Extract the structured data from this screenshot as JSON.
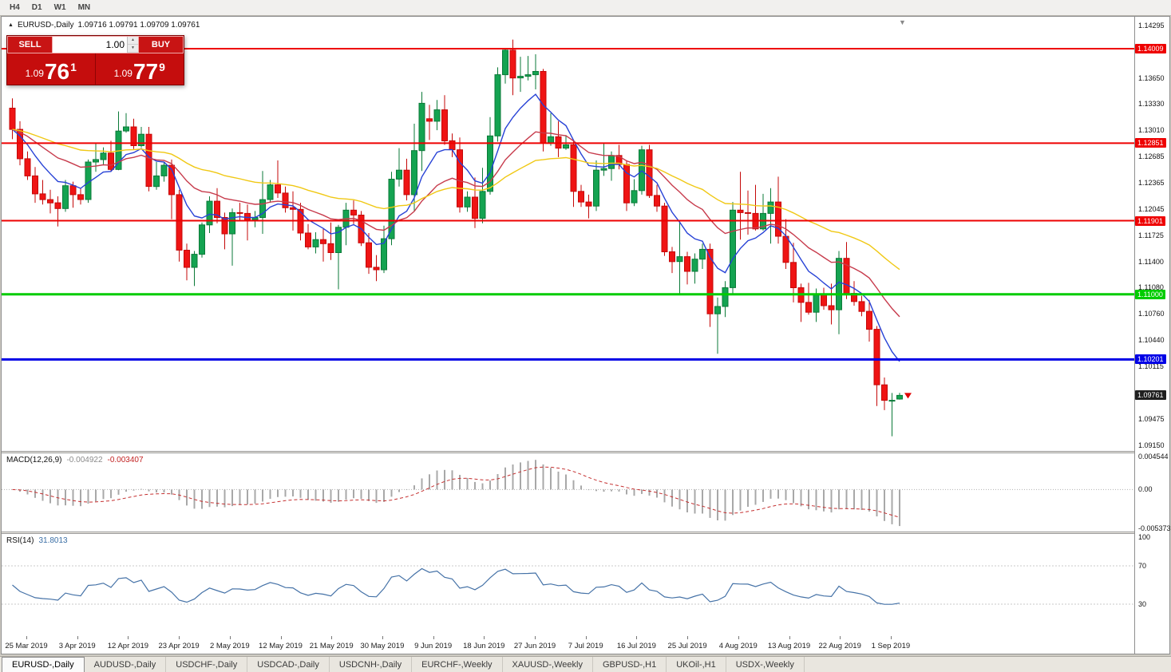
{
  "toolbar": {
    "timeframes": [
      "H4",
      "D1",
      "W1",
      "MN"
    ]
  },
  "icons": {
    "symbol_marker": "▲",
    "spinner_up": "▲",
    "spinner_down": "▼",
    "shift_marker": "▼",
    "price_arrow": "▼"
  },
  "window": {
    "symbol_line": {
      "symbol": "EURUSD-,Daily",
      "ohlc": "1.09716 1.09791 1.09709 1.09761"
    },
    "trade_panel": {
      "sell_label": "SELL",
      "buy_label": "BUY",
      "volume": "1.00",
      "sell_price": {
        "prefix": "1.09",
        "big": "76",
        "sup": "1"
      },
      "buy_price": {
        "prefix": "1.09",
        "big": "77",
        "sup": "9"
      }
    }
  },
  "price_scale": {
    "ticks": [
      "1.14295",
      "1.13650",
      "1.13330",
      "1.13010",
      "1.12685",
      "1.12365",
      "1.12045",
      "1.11725",
      "1.11400",
      "1.11080",
      "1.10760",
      "1.10440",
      "1.10115",
      "1.09475",
      "1.09150"
    ],
    "current": {
      "label": "1.09761",
      "price": 1.09761,
      "color": "#1f1f1f"
    }
  },
  "macd": {
    "label": "MACD(12,26,9)",
    "value_main": "-0.004922",
    "value_signal": "-0.003407",
    "scale_ticks": [
      {
        "label": "0.004544",
        "value": 0.004544
      },
      {
        "label": "0.00",
        "value": 0
      },
      {
        "label": "-0.005373",
        "value": -0.005373
      }
    ],
    "scale": {
      "max": 0.005,
      "min": -0.0058
    },
    "colors": {
      "histogram": "#a8a8a8",
      "signal": "#c53030"
    }
  },
  "rsi": {
    "label": "RSI(14)",
    "value": "31.8013",
    "scale_ticks": [
      100,
      70,
      30
    ],
    "upper_level": 70,
    "lower_level": 30,
    "color": "#4572a7"
  },
  "chart_data": {
    "type": "candlestick",
    "symbol": "EURUSD",
    "timeframe": "Daily",
    "title": "EURUSD-,Daily",
    "y_range": {
      "min": 1.0908,
      "max": 1.144
    },
    "x_labels": [
      "25 Mar 2019",
      "3 Apr 2019",
      "12 Apr 2019",
      "23 Apr 2019",
      "2 May 2019",
      "12 May 2019",
      "21 May 2019",
      "30 May 2019",
      "9 Jun 2019",
      "18 Jun 2019",
      "27 Jun 2019",
      "7 Jul 2019",
      "16 Jul 2019",
      "25 Jul 2019",
      "4 Aug 2019",
      "13 Aug 2019",
      "22 Aug 2019",
      "1 Sep 2019"
    ],
    "candles": [
      [
        1.1328,
        1.134,
        1.129,
        1.1302
      ],
      [
        1.1302,
        1.1312,
        1.1258,
        1.1266
      ],
      [
        1.1266,
        1.1275,
        1.124,
        1.1245
      ],
      [
        1.1245,
        1.1256,
        1.1212,
        1.1223
      ],
      [
        1.1223,
        1.124,
        1.121,
        1.1216
      ],
      [
        1.1216,
        1.1228,
        1.1199,
        1.1212
      ],
      [
        1.1212,
        1.122,
        1.1183,
        1.1205
      ],
      [
        1.1205,
        1.124,
        1.1201,
        1.1233
      ],
      [
        1.1233,
        1.1238,
        1.1206,
        1.1222
      ],
      [
        1.1222,
        1.123,
        1.121,
        1.1216
      ],
      [
        1.1216,
        1.1265,
        1.1212,
        1.1262
      ],
      [
        1.1262,
        1.1285,
        1.125,
        1.1265
      ],
      [
        1.1265,
        1.128,
        1.1258,
        1.1273
      ],
      [
        1.1273,
        1.1288,
        1.125,
        1.1253
      ],
      [
        1.1253,
        1.1324,
        1.1252,
        1.13
      ],
      [
        1.13,
        1.1322,
        1.1298,
        1.1305
      ],
      [
        1.1305,
        1.1315,
        1.1278,
        1.1282
      ],
      [
        1.1282,
        1.1305,
        1.128,
        1.1296
      ],
      [
        1.1296,
        1.1305,
        1.1226,
        1.1232
      ],
      [
        1.1232,
        1.1262,
        1.1228,
        1.1245
      ],
      [
        1.1245,
        1.1262,
        1.1238,
        1.1258
      ],
      [
        1.1258,
        1.1265,
        1.1192,
        1.1222
      ],
      [
        1.1222,
        1.1228,
        1.114,
        1.1154
      ],
      [
        1.1154,
        1.1162,
        1.1117,
        1.1133
      ],
      [
        1.1133,
        1.1153,
        1.111,
        1.1149
      ],
      [
        1.1149,
        1.1188,
        1.1145,
        1.1185
      ],
      [
        1.1185,
        1.122,
        1.1175,
        1.1214
      ],
      [
        1.1214,
        1.123,
        1.1187,
        1.1194
      ],
      [
        1.1194,
        1.12,
        1.1155,
        1.1174
      ],
      [
        1.1174,
        1.1205,
        1.1135,
        1.12
      ],
      [
        1.12,
        1.1212,
        1.119,
        1.1199
      ],
      [
        1.1199,
        1.121,
        1.1166,
        1.1191
      ],
      [
        1.1191,
        1.1202,
        1.1182,
        1.1194
      ],
      [
        1.1194,
        1.1251,
        1.1174,
        1.1216
      ],
      [
        1.1216,
        1.124,
        1.1212,
        1.1234
      ],
      [
        1.1234,
        1.1264,
        1.1218,
        1.1224
      ],
      [
        1.1224,
        1.1232,
        1.12,
        1.1206
      ],
      [
        1.1206,
        1.1226,
        1.1178,
        1.1204
      ],
      [
        1.1204,
        1.1212,
        1.1166,
        1.1175
      ],
      [
        1.1175,
        1.1186,
        1.1155,
        1.1158
      ],
      [
        1.1158,
        1.1176,
        1.115,
        1.1167
      ],
      [
        1.1167,
        1.118,
        1.114,
        1.1162
      ],
      [
        1.1162,
        1.1188,
        1.1142,
        1.1151
      ],
      [
        1.1151,
        1.1185,
        1.1106,
        1.1182
      ],
      [
        1.1182,
        1.1212,
        1.116,
        1.1203
      ],
      [
        1.1203,
        1.1215,
        1.1186,
        1.1197
      ],
      [
        1.1197,
        1.1202,
        1.1159,
        1.1163
      ],
      [
        1.1163,
        1.1175,
        1.1125,
        1.1133
      ],
      [
        1.1133,
        1.1148,
        1.1116,
        1.113
      ],
      [
        1.113,
        1.1184,
        1.1126,
        1.1168
      ],
      [
        1.1168,
        1.125,
        1.116,
        1.1241
      ],
      [
        1.1241,
        1.1279,
        1.1232,
        1.1252
      ],
      [
        1.1252,
        1.1266,
        1.1215,
        1.1222
      ],
      [
        1.1222,
        1.1309,
        1.1202,
        1.1276
      ],
      [
        1.1276,
        1.1348,
        1.1251,
        1.1334
      ],
      [
        1.1315,
        1.1332,
        1.1289,
        1.1312
      ],
      [
        1.1312,
        1.1338,
        1.1301,
        1.1326
      ],
      [
        1.1326,
        1.1344,
        1.1283,
        1.1288
      ],
      [
        1.1288,
        1.1297,
        1.1268,
        1.1277
      ],
      [
        1.1277,
        1.1292,
        1.12,
        1.1207
      ],
      [
        1.1207,
        1.1226,
        1.1201,
        1.1219
      ],
      [
        1.1219,
        1.1243,
        1.1181,
        1.1193
      ],
      [
        1.1193,
        1.1255,
        1.1187,
        1.1226
      ],
      [
        1.1226,
        1.1317,
        1.1222,
        1.1294
      ],
      [
        1.1294,
        1.1378,
        1.1287,
        1.1369
      ],
      [
        1.1369,
        1.14,
        1.1358,
        1.1399
      ],
      [
        1.1399,
        1.1412,
        1.1344,
        1.1365
      ],
      [
        1.1365,
        1.1391,
        1.1348,
        1.1367
      ],
      [
        1.1367,
        1.1392,
        1.1362,
        1.1369
      ],
      [
        1.1369,
        1.1394,
        1.1351,
        1.1373
      ],
      [
        1.1373,
        1.1376,
        1.1275,
        1.1285
      ],
      [
        1.1285,
        1.1322,
        1.1282,
        1.1293
      ],
      [
        1.1293,
        1.1312,
        1.1268,
        1.1279
      ],
      [
        1.1279,
        1.1295,
        1.1277,
        1.1283
      ],
      [
        1.1283,
        1.1289,
        1.1207,
        1.1226
      ],
      [
        1.1226,
        1.1234,
        1.1207,
        1.1213
      ],
      [
        1.1213,
        1.1222,
        1.1193,
        1.1208
      ],
      [
        1.1208,
        1.1264,
        1.1202,
        1.1252
      ],
      [
        1.1252,
        1.1286,
        1.1245,
        1.1254
      ],
      [
        1.1254,
        1.1275,
        1.1239,
        1.127
      ],
      [
        1.127,
        1.1283,
        1.1253,
        1.1259
      ],
      [
        1.1259,
        1.1263,
        1.1202,
        1.1212
      ],
      [
        1.1212,
        1.1241,
        1.1208,
        1.1227
      ],
      [
        1.1227,
        1.1282,
        1.1222,
        1.1277
      ],
      [
        1.1277,
        1.1283,
        1.1218,
        1.1221
      ],
      [
        1.1221,
        1.1234,
        1.1201,
        1.1208
      ],
      [
        1.1208,
        1.1212,
        1.1147,
        1.1152
      ],
      [
        1.1152,
        1.1158,
        1.1126,
        1.114
      ],
      [
        1.114,
        1.1188,
        1.1101,
        1.1146
      ],
      [
        1.1146,
        1.1152,
        1.1112,
        1.1128
      ],
      [
        1.1128,
        1.115,
        1.1113,
        1.1143
      ],
      [
        1.1143,
        1.1162,
        1.1131,
        1.1155
      ],
      [
        1.1155,
        1.1162,
        1.106,
        1.1076
      ],
      [
        1.1076,
        1.1096,
        1.1027,
        1.1085
      ],
      [
        1.1085,
        1.1116,
        1.1072,
        1.1108
      ],
      [
        1.1108,
        1.1213,
        1.1101,
        1.1203
      ],
      [
        1.1203,
        1.125,
        1.1167,
        1.12
      ],
      [
        1.12,
        1.1227,
        1.1173,
        1.1199
      ],
      [
        1.1199,
        1.1234,
        1.1178,
        1.118
      ],
      [
        1.118,
        1.1223,
        1.1178,
        1.1199
      ],
      [
        1.1199,
        1.123,
        1.1162,
        1.1213
      ],
      [
        1.1213,
        1.1244,
        1.1162,
        1.1171
      ],
      [
        1.1171,
        1.1192,
        1.1131,
        1.1139
      ],
      [
        1.1139,
        1.1163,
        1.109,
        1.1108
      ],
      [
        1.1108,
        1.1113,
        1.1066,
        1.109
      ],
      [
        1.109,
        1.1114,
        1.1075,
        1.1078
      ],
      [
        1.1078,
        1.1107,
        1.1066,
        1.1099
      ],
      [
        1.1099,
        1.1108,
        1.1081,
        1.1086
      ],
      [
        1.1086,
        1.1113,
        1.1063,
        1.1081
      ],
      [
        1.1081,
        1.1153,
        1.1051,
        1.1144
      ],
      [
        1.1144,
        1.1164,
        1.1094,
        1.1101
      ],
      [
        1.1101,
        1.1116,
        1.1086,
        1.1091
      ],
      [
        1.1091,
        1.1098,
        1.1073,
        1.1079
      ],
      [
        1.1079,
        1.1093,
        1.1042,
        1.1057
      ],
      [
        1.1057,
        1.1061,
        1.0963,
        1.0989
      ],
      [
        1.0989,
        1.0998,
        1.0958,
        1.097
      ],
      [
        1.097,
        1.0979,
        1.0926,
        1.097
      ],
      [
        1.09716,
        1.09791,
        1.09709,
        1.09761
      ]
    ],
    "levels": [
      {
        "price": 1.14009,
        "label": "1.14009",
        "color": "#ee0000",
        "width": 2
      },
      {
        "price": 1.12851,
        "label": "1.12851",
        "color": "#ee0000",
        "width": 2
      },
      {
        "price": 1.11901,
        "label": "1.11901",
        "color": "#ee0000",
        "width": 2
      },
      {
        "price": 1.11,
        "label": "1.11000",
        "color": "#00cc00",
        "width": 3
      },
      {
        "price": 1.10201,
        "label": "1.10201",
        "color": "#0000e6",
        "width": 3
      }
    ],
    "moving_averages": [
      {
        "name": "ma-fast",
        "period": 8,
        "color": "#2742d6"
      },
      {
        "name": "ma-medium",
        "period": 20,
        "color": "#c73b4c"
      },
      {
        "name": "ma-slow",
        "period": 45,
        "color": "#f0c814"
      }
    ],
    "candle_colors": {
      "bull": "#14a351",
      "bull_edge": "#0b7a38",
      "bear": "#ef1414",
      "bear_edge": "#c40808"
    },
    "indicators": [
      {
        "name": "MACD",
        "params": [
          12,
          26,
          9
        ],
        "current_main": -0.004922,
        "current_signal": -0.003407
      },
      {
        "name": "RSI",
        "params": [
          14
        ],
        "current": 31.8013
      }
    ]
  },
  "tabs": {
    "active_index": 0,
    "items": [
      "EURUSD-,Daily",
      "AUDUSD-,Daily",
      "USDCHF-,Daily",
      "USDCAD-,Daily",
      "USDCNH-,Daily",
      "EURCHF-,Weekly",
      "XAUUSD-,Weekly",
      "GBPUSD-,H1",
      "UKOil-,H1",
      "USDX-,Weekly"
    ]
  }
}
